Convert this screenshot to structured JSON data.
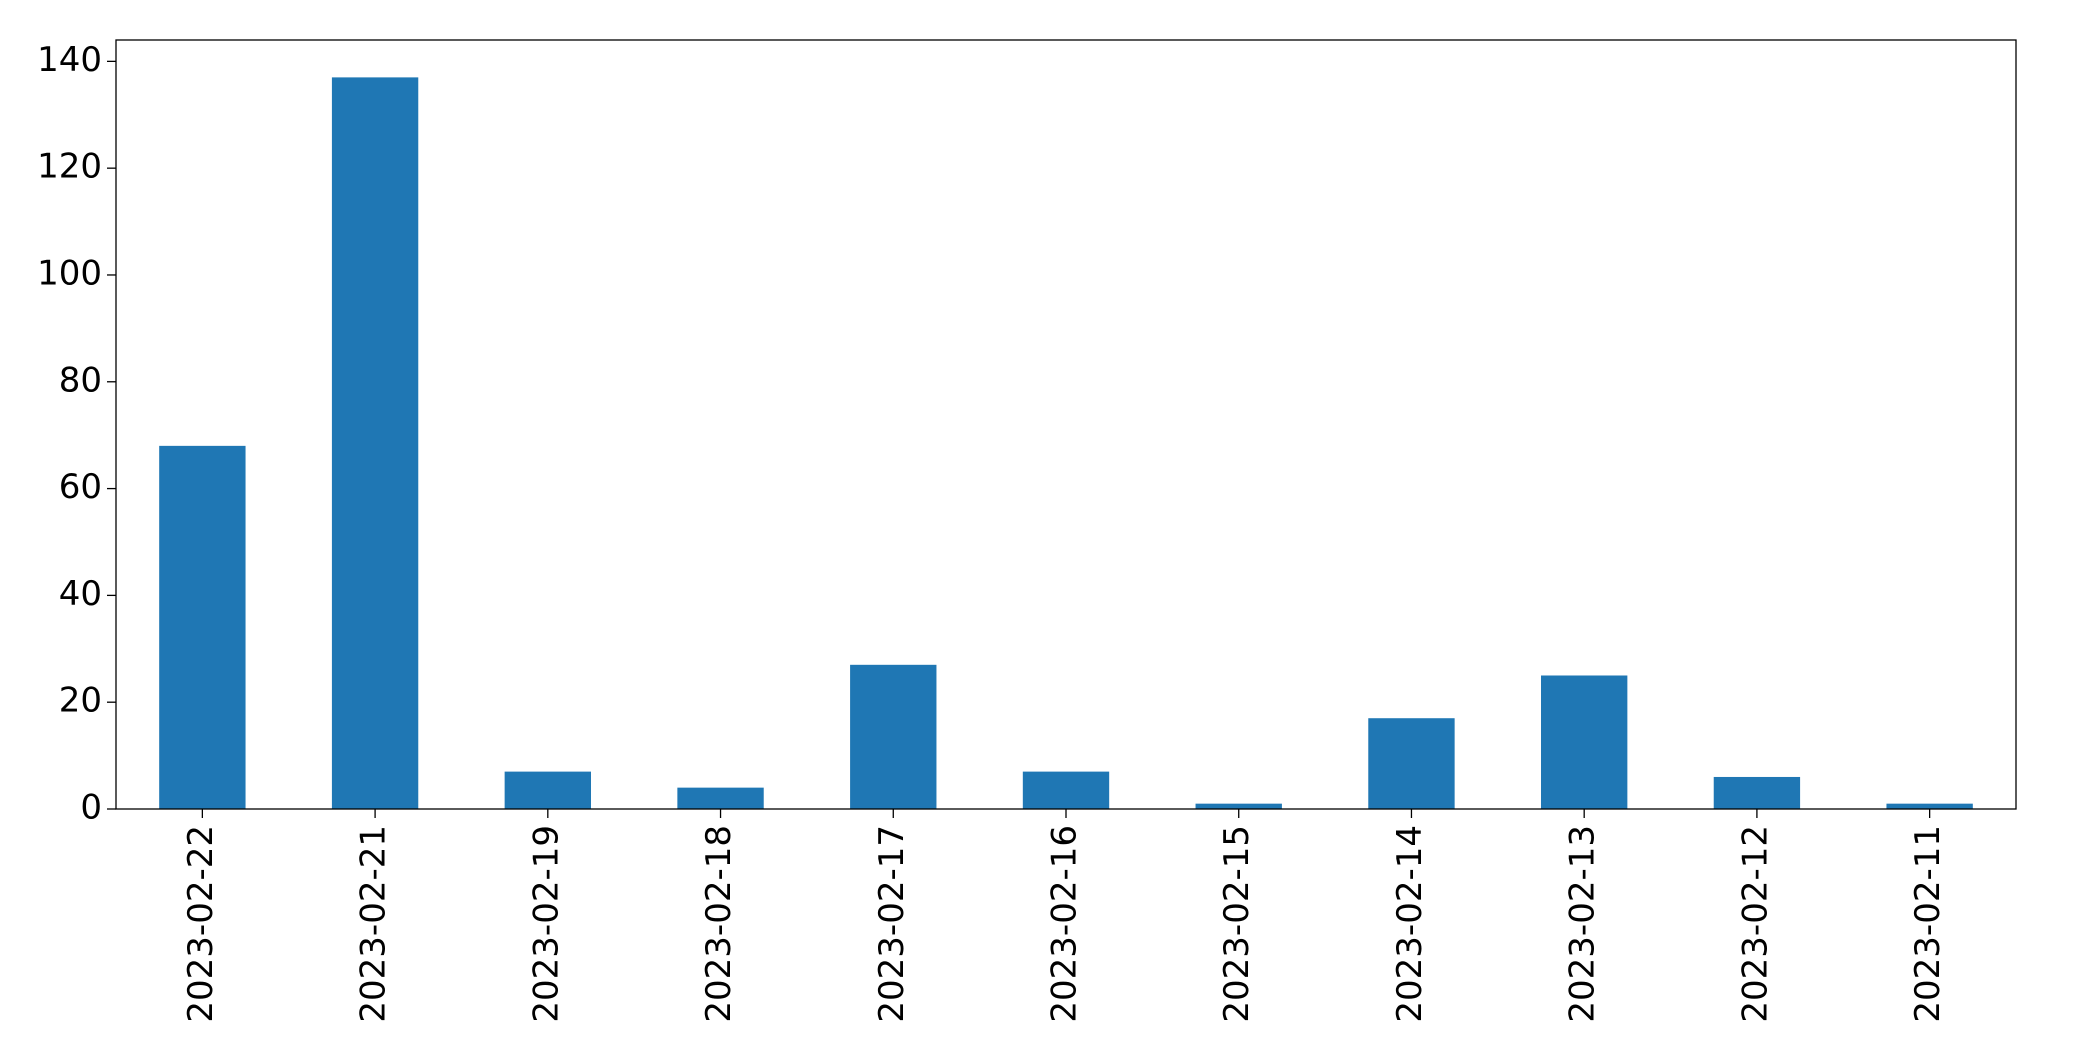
{
  "chart_data": {
    "type": "bar",
    "categories": [
      "2023-02-22",
      "2023-02-21",
      "2023-02-19",
      "2023-02-18",
      "2023-02-17",
      "2023-02-16",
      "2023-02-15",
      "2023-02-14",
      "2023-02-13",
      "2023-02-12",
      "2023-02-11"
    ],
    "values": [
      68,
      137,
      7,
      4,
      27,
      7,
      1,
      17,
      25,
      6,
      1
    ],
    "color": "#1f77b4",
    "ylim": [
      0,
      144
    ],
    "yticks": [
      0,
      20,
      40,
      60,
      80,
      100,
      120,
      140
    ]
  }
}
